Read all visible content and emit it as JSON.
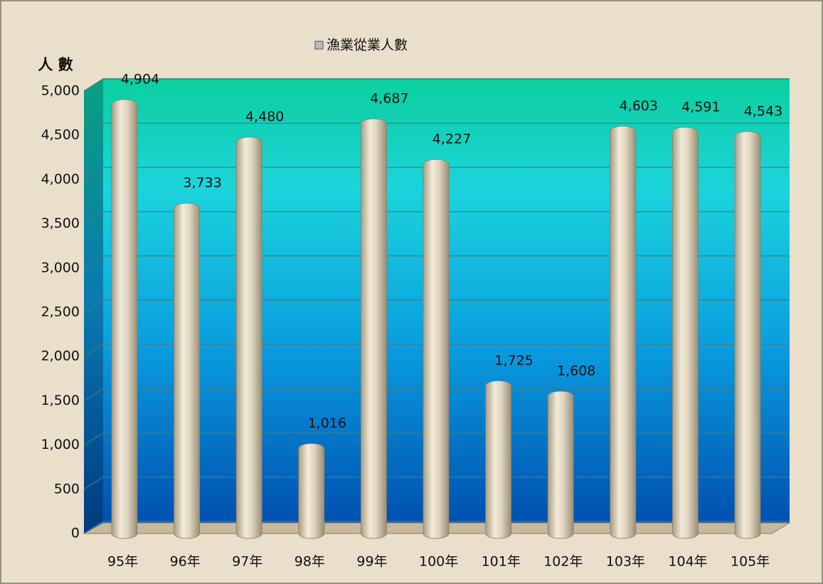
{
  "chart_data": {
    "type": "bar",
    "legend": "漁業從業人數",
    "y_label": "人 數",
    "categories": [
      "95年",
      "96年",
      "97年",
      "98年",
      "99年",
      "100年",
      "101年",
      "102年",
      "103年",
      "104年",
      "105年"
    ],
    "values": [
      4904,
      3733,
      4480,
      1016,
      4687,
      4227,
      1725,
      1608,
      4603,
      4591,
      4543
    ],
    "value_labels": [
      "4,904",
      "3,733",
      "4,480",
      "1,016",
      "4,687",
      "4,227",
      "1,725",
      "1,608",
      "4,603",
      "4,591",
      "4,543"
    ],
    "color": "#d8cdb4",
    "ylim": [
      0,
      5000
    ],
    "yticks": [
      0,
      500,
      {
        "value": 1000,
        "label": "1,000"
      },
      {
        "value": 1500,
        "label": "1,500"
      },
      {
        "value": 2000,
        "label": "2,000"
      },
      {
        "value": 2500,
        "label": "2,500"
      },
      {
        "value": 3000,
        "label": "3,000"
      },
      {
        "value": 3500,
        "label": "3,500"
      },
      {
        "value": 4000,
        "label": "4,000"
      },
      {
        "value": 4500,
        "label": "4,500"
      },
      {
        "value": 5000,
        "label": "5,000"
      }
    ],
    "grid": true
  }
}
